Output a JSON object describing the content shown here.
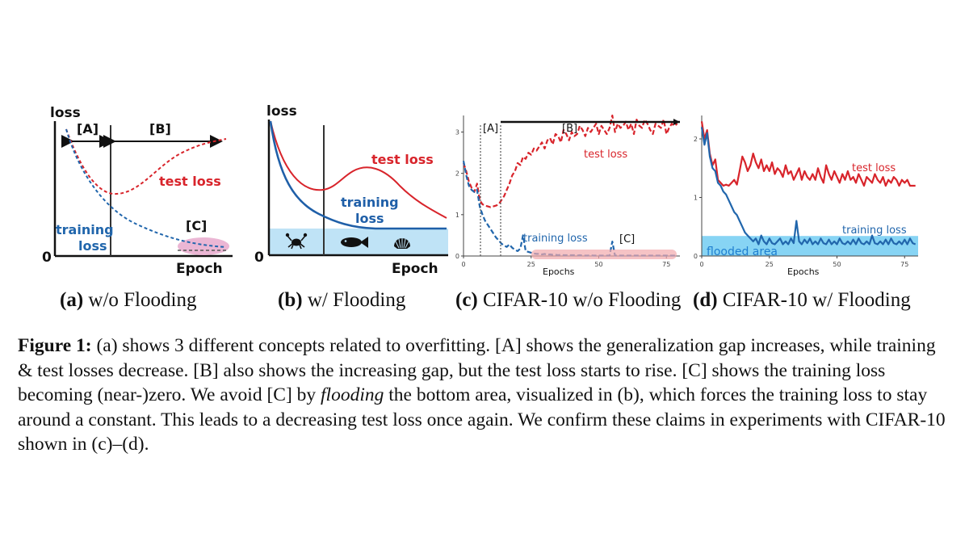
{
  "panels": {
    "a": {
      "caption_label": "(a)",
      "caption_text": "w/o Flooding",
      "y_label": "loss",
      "x_label": "Epoch",
      "origin_label": "0",
      "region_a": "[A]",
      "region_b": "[B]",
      "region_c": "[C]",
      "test_label": "test loss",
      "train_label_1": "training",
      "train_label_2": "loss",
      "colors": {
        "test": "#d8242b",
        "train": "#2166ac",
        "c_region": "#e7a9cd"
      }
    },
    "b": {
      "caption_label": "(b)",
      "caption_text": "w/ Flooding",
      "y_label": "loss",
      "x_label": "Epoch",
      "origin_label": "0",
      "test_label": "test loss",
      "train_label_1": "training",
      "train_label_2": "loss",
      "icons": [
        "crab-icon",
        "fish-icon",
        "shell-icon"
      ],
      "colors": {
        "test": "#d8242b",
        "train": "#1f5fa8",
        "flood": "#bfe3f6"
      }
    },
    "c": {
      "caption_label": "(c)",
      "caption_text": "CIFAR-10 w/o Flooding",
      "region_a": "[A]",
      "region_b": "[B]",
      "region_c": "[C]",
      "test_label": "test loss",
      "train_label": "training loss",
      "x_label": "Epochs"
    },
    "d": {
      "caption_label": "(d)",
      "caption_text": "CIFAR-10 w/ Flooding",
      "test_label": "test loss",
      "train_label": "training loss",
      "flood_label": "flooded area",
      "x_label": "Epochs"
    }
  },
  "chart_data": [
    {
      "panel": "c",
      "type": "line",
      "xlabel": "Epochs",
      "ylabel": "",
      "xlim": [
        0,
        80
      ],
      "ylim": [
        0,
        3.4
      ],
      "x_ticks": [
        "0",
        "25",
        "50",
        "75"
      ],
      "y_ticks": [
        "0",
        "1",
        "2",
        "3"
      ],
      "series": [
        {
          "name": "test loss",
          "style": "dashed",
          "color": "#d8242b",
          "x": [
            0,
            1,
            2,
            3,
            4,
            5,
            6,
            7,
            8,
            9,
            10,
            11,
            12,
            13,
            14,
            15,
            16,
            17,
            18,
            19,
            20,
            21,
            22,
            23,
            24,
            25,
            26,
            27,
            28,
            29,
            30,
            31,
            32,
            33,
            34,
            35,
            36,
            37,
            38,
            39,
            40,
            41,
            42,
            43,
            44,
            45,
            46,
            47,
            48,
            49,
            50,
            51,
            52,
            53,
            54,
            55,
            56,
            57,
            58,
            59,
            60,
            61,
            62,
            63,
            64,
            65,
            66,
            67,
            68,
            69,
            70,
            71,
            72,
            73,
            74,
            75,
            76,
            77,
            78,
            79
          ],
          "y": [
            2.25,
            2.05,
            1.8,
            1.65,
            1.55,
            1.75,
            1.35,
            1.25,
            1.22,
            1.2,
            1.18,
            1.2,
            1.22,
            1.25,
            1.35,
            1.45,
            1.6,
            1.75,
            1.95,
            2.05,
            2.25,
            2.2,
            2.4,
            2.35,
            2.5,
            2.45,
            2.6,
            2.55,
            2.65,
            2.75,
            2.6,
            2.8,
            2.85,
            2.7,
            2.95,
            2.9,
            2.75,
            3.05,
            2.95,
            2.8,
            3.0,
            2.9,
            2.95,
            3.15,
            3.05,
            2.9,
            3.1,
            3.0,
            3.1,
            3.2,
            2.95,
            3.15,
            3.05,
            2.95,
            3.1,
            3.4,
            3.0,
            3.2,
            3.1,
            3.15,
            3.25,
            3.05,
            3.2,
            2.95,
            3.3,
            3.15,
            3.1,
            3.3,
            3.2,
            3.05,
            2.95,
            3.2,
            3.15,
            3.1,
            3.3,
            2.95,
            3.1,
            3.2,
            3.15,
            3.2
          ]
        },
        {
          "name": "training loss",
          "style": "dashed",
          "color": "#2166ac",
          "x": [
            0,
            1,
            2,
            3,
            4,
            5,
            6,
            7,
            8,
            9,
            10,
            11,
            12,
            13,
            14,
            15,
            16,
            17,
            18,
            19,
            20,
            21,
            22,
            23,
            24,
            25,
            26,
            27,
            28,
            29,
            30,
            31,
            32,
            33,
            34,
            35,
            36,
            37,
            38,
            39,
            40,
            41,
            42,
            43,
            44,
            45,
            46,
            47,
            48,
            49,
            50,
            51,
            52,
            53,
            54,
            55,
            56,
            57,
            58,
            59,
            60,
            61,
            62,
            63,
            64,
            65,
            66,
            67,
            68,
            69,
            70,
            71,
            72,
            73,
            74,
            75,
            76,
            77,
            78,
            79
          ],
          "y": [
            2.3,
            1.95,
            1.7,
            1.6,
            1.55,
            1.6,
            1.2,
            1.0,
            0.85,
            0.75,
            0.65,
            0.55,
            0.45,
            0.38,
            0.3,
            0.25,
            0.22,
            0.28,
            0.2,
            0.15,
            0.12,
            0.18,
            0.5,
            0.12,
            0.1,
            0.08,
            0.06,
            0.05,
            0.05,
            0.04,
            0.05,
            0.03,
            0.04,
            0.03,
            0.03,
            0.02,
            0.03,
            0.02,
            0.02,
            0.02,
            0.02,
            0.02,
            0.01,
            0.02,
            0.01,
            0.01,
            0.01,
            0.02,
            0.01,
            0.01,
            0.01,
            0.01,
            0.01,
            0.01,
            0.01,
            0.35,
            0.01,
            0.01,
            0.01,
            0.01,
            0.01,
            0.01,
            0.01,
            0.01,
            0.01,
            0.01,
            0.01,
            0.01,
            0.01,
            0.01,
            0.01,
            0.01,
            0.01,
            0.01,
            0.01,
            0.01,
            0.01,
            0.01,
            0.01,
            0.01
          ]
        }
      ]
    },
    {
      "panel": "d",
      "type": "line",
      "xlabel": "Epochs",
      "ylabel": "",
      "xlim": [
        0,
        80
      ],
      "ylim": [
        0,
        2.4
      ],
      "flood_level": 0.18,
      "x_ticks": [
        "0",
        "25",
        "50",
        "75"
      ],
      "y_ticks": [
        "0",
        "1",
        "2"
      ],
      "series": [
        {
          "name": "test loss",
          "style": "solid",
          "color": "#d8242b",
          "x": [
            0,
            1,
            2,
            3,
            4,
            5,
            6,
            7,
            8,
            9,
            10,
            11,
            12,
            13,
            14,
            15,
            16,
            17,
            18,
            19,
            20,
            21,
            22,
            23,
            24,
            25,
            26,
            27,
            28,
            29,
            30,
            31,
            32,
            33,
            34,
            35,
            36,
            37,
            38,
            39,
            40,
            41,
            42,
            43,
            44,
            45,
            46,
            47,
            48,
            49,
            50,
            51,
            52,
            53,
            54,
            55,
            56,
            57,
            58,
            59,
            60,
            61,
            62,
            63,
            64,
            65,
            66,
            67,
            68,
            69,
            70,
            71,
            72,
            73,
            74,
            75,
            76,
            77,
            78,
            79
          ],
          "y": [
            2.3,
            2.0,
            2.15,
            1.75,
            1.55,
            1.65,
            1.3,
            1.25,
            1.2,
            1.22,
            1.2,
            1.25,
            1.3,
            1.22,
            1.45,
            1.7,
            1.6,
            1.45,
            1.55,
            1.75,
            1.6,
            1.5,
            1.65,
            1.45,
            1.55,
            1.45,
            1.6,
            1.4,
            1.5,
            1.45,
            1.35,
            1.55,
            1.4,
            1.45,
            1.3,
            1.4,
            1.5,
            1.3,
            1.45,
            1.35,
            1.3,
            1.4,
            1.3,
            1.5,
            1.35,
            1.25,
            1.55,
            1.4,
            1.3,
            1.45,
            1.35,
            1.25,
            1.4,
            1.3,
            1.45,
            1.3,
            1.35,
            1.25,
            1.4,
            1.3,
            1.2,
            1.35,
            1.3,
            1.25,
            1.4,
            1.3,
            1.25,
            1.35,
            1.2,
            1.3,
            1.25,
            1.35,
            1.3,
            1.2,
            1.3,
            1.25,
            1.3,
            1.2,
            1.2,
            1.2
          ]
        },
        {
          "name": "training loss",
          "style": "solid",
          "color": "#2166ac",
          "x": [
            0,
            1,
            2,
            3,
            4,
            5,
            6,
            7,
            8,
            9,
            10,
            11,
            12,
            13,
            14,
            15,
            16,
            17,
            18,
            19,
            20,
            21,
            22,
            23,
            24,
            25,
            26,
            27,
            28,
            29,
            30,
            31,
            32,
            33,
            34,
            35,
            36,
            37,
            38,
            39,
            40,
            41,
            42,
            43,
            44,
            45,
            46,
            47,
            48,
            49,
            50,
            51,
            52,
            53,
            54,
            55,
            56,
            57,
            58,
            59,
            60,
            61,
            62,
            63,
            64,
            65,
            66,
            67,
            68,
            69,
            70,
            71,
            72,
            73,
            74,
            75,
            76,
            77,
            78,
            79
          ],
          "y": [
            2.2,
            1.9,
            2.1,
            1.7,
            1.5,
            1.45,
            1.25,
            1.2,
            1.1,
            1.05,
            0.95,
            0.85,
            0.75,
            0.7,
            0.6,
            0.5,
            0.4,
            0.35,
            0.3,
            0.25,
            0.3,
            0.2,
            0.35,
            0.25,
            0.2,
            0.3,
            0.22,
            0.2,
            0.25,
            0.3,
            0.2,
            0.25,
            0.2,
            0.3,
            0.22,
            0.6,
            0.25,
            0.2,
            0.28,
            0.22,
            0.3,
            0.2,
            0.25,
            0.2,
            0.3,
            0.22,
            0.2,
            0.28,
            0.2,
            0.25,
            0.2,
            0.3,
            0.22,
            0.2,
            0.25,
            0.2,
            0.28,
            0.2,
            0.3,
            0.22,
            0.2,
            0.25,
            0.2,
            0.35,
            0.22,
            0.2,
            0.25,
            0.2,
            0.28,
            0.2,
            0.3,
            0.22,
            0.2,
            0.25,
            0.2,
            0.28,
            0.2,
            0.3,
            0.22,
            0.2
          ]
        }
      ]
    }
  ],
  "figure_caption": {
    "label": "Figure 1:",
    "part1": " (a) shows 3 different concepts related to overfitting. [A] shows the generalization gap increases, while training & test losses decrease. [B] also shows the increasing gap, but the test loss starts to rise. [C] shows the training loss becoming (near-)zero. We avoid [C] by ",
    "emph": "flooding",
    "part2": " the bottom area, visualized in (b), which forces the training loss to stay around a constant. This leads to a decreasing test loss once again. We confirm these claims in experiments with CIFAR-10 shown in (c)–(d)."
  }
}
